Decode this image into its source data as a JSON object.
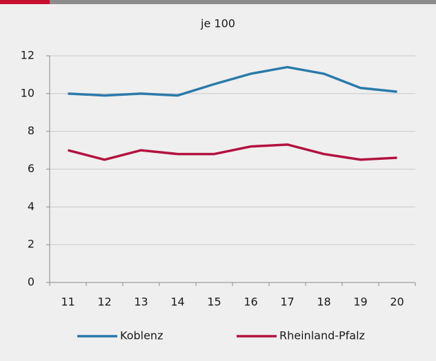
{
  "chart_data": {
    "type": "line",
    "title": "je 100",
    "categories": [
      "11",
      "12",
      "13",
      "14",
      "15",
      "16",
      "17",
      "18",
      "19",
      "20"
    ],
    "series": [
      {
        "name": "Koblenz",
        "color": "#2a7aaa",
        "values": [
          10.0,
          9.9,
          10.0,
          9.9,
          10.5,
          11.05,
          11.4,
          11.05,
          10.3,
          10.1
        ]
      },
      {
        "name": "Rheinland-Pfalz",
        "color": "#b3123f",
        "values": [
          7.0,
          6.5,
          7.0,
          6.8,
          6.8,
          7.2,
          7.3,
          6.8,
          6.5,
          6.6
        ]
      }
    ],
    "ylim": [
      0,
      12
    ],
    "yticks": [
      0,
      2,
      4,
      6,
      8,
      10,
      12
    ],
    "grid": true,
    "legend": "bottom"
  }
}
